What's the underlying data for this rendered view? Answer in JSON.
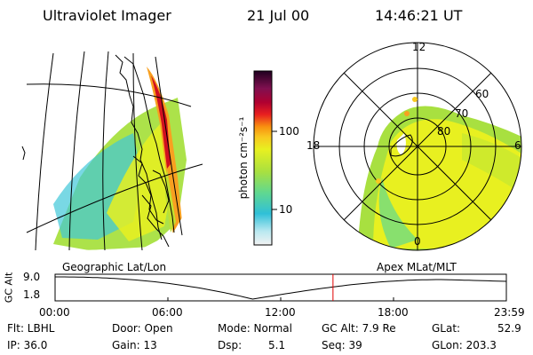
{
  "header": {
    "instrument": "Ultraviolet Imager",
    "date": "21 Jul 00",
    "time": "14:46:21 UT"
  },
  "colorbar": {
    "unit_label": "photon cm⁻²s⁻¹",
    "tick_100": "100",
    "tick_10": "10"
  },
  "panels": {
    "left_caption": "Geographic Lat/Lon",
    "right_caption": "Apex MLat/MLT"
  },
  "polar_labels": {
    "mlt_12": "12",
    "mlt_18": "18",
    "mlt_6": "6",
    "mlt_0": "0",
    "lat_60": "60",
    "lat_70": "70",
    "lat_80": "80"
  },
  "altitude_plot": {
    "ylabel": "GC Alt",
    "y_max": "9.0",
    "y_min": "1.8",
    "x_ticks": [
      "00:00",
      "06:00",
      "12:00",
      "18:00",
      "23:59"
    ],
    "current_time_hours": 14.77,
    "marker_color": "#e00000"
  },
  "footer": {
    "filter": "Flt: LBHL",
    "ip": "IP: 36.0",
    "door": "Door: Open",
    "gain": "Gain: 13",
    "mode": "Mode: Normal",
    "dsp": "Dsp:",
    "dsp_value": "5.1",
    "gc_alt": "GC Alt: 7.9 Re",
    "seq": "Seq: 39",
    "glat": "GLat:",
    "glat_value": "52.9",
    "glon": "GLon: 203.3"
  }
}
